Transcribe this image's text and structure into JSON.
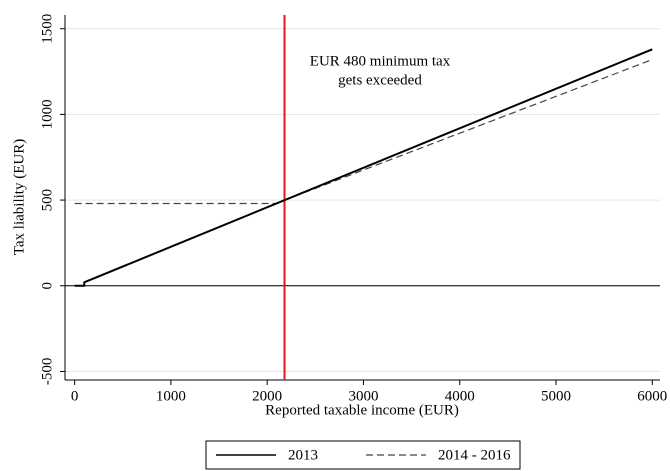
{
  "chart_data": {
    "type": "line",
    "xlabel": "Reported taxable  income (EUR)",
    "ylabel": "Tax liability (EUR)",
    "xlim": [
      -100,
      6080
    ],
    "xticks": [
      0,
      1000,
      2000,
      3000,
      4000,
      5000,
      6000
    ],
    "ylim": [
      -550,
      1580
    ],
    "yticks": [
      -500,
      0,
      500,
      1000,
      1500
    ],
    "grid": true,
    "series": [
      {
        "name": "2013",
        "color": "#000000",
        "linestyle": "solid",
        "x": [
          0,
          100,
          100,
          6000
        ],
        "values": [
          0,
          0,
          20,
          1380
        ]
      },
      {
        "name": "2014 - 2016",
        "color": "#444444",
        "linestyle": "dashed",
        "x": [
          0,
          2090,
          6000
        ],
        "values": [
          480,
          480,
          1320
        ]
      }
    ],
    "hline": {
      "y": 0,
      "color": "#000000"
    },
    "vline": {
      "x": 2180,
      "color": "#e8141c"
    },
    "annotation": {
      "lines": [
        "EUR 480 minimum tax",
        "gets exceeded"
      ],
      "color": "#e8141c"
    },
    "legend": "bottom"
  }
}
